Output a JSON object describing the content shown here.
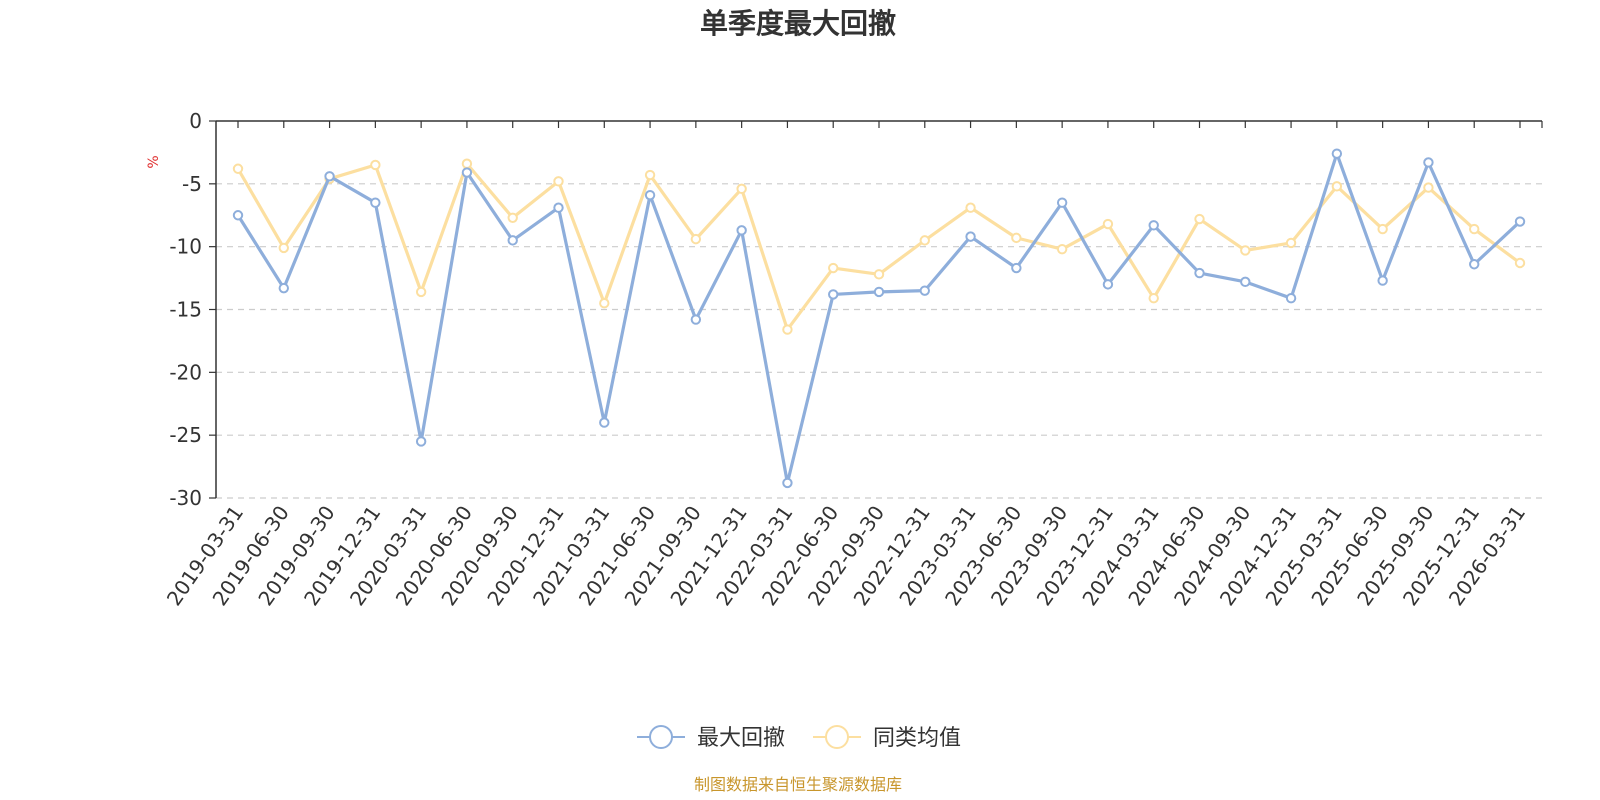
{
  "chart_data": {
    "type": "line",
    "title": "单季度最大回撤",
    "ylabel": "%",
    "ylim": [
      -30,
      0
    ],
    "yticks": [
      0,
      -5,
      -10,
      -15,
      -20,
      -25,
      -30
    ],
    "grid": true,
    "legend_position": "bottom",
    "categories": [
      "2019-03-31",
      "2019-06-30",
      "2019-09-30",
      "2019-12-31",
      "2020-03-31",
      "2020-06-30",
      "2020-09-30",
      "2020-12-31",
      "2021-03-31",
      "2021-06-30",
      "2021-09-30",
      "2021-12-31",
      "2022-03-31",
      "2022-06-30",
      "2022-09-30",
      "2022-12-31",
      "2023-03-31",
      "2023-06-30",
      "2023-09-30",
      "2023-12-31",
      "2024-03-31",
      "2024-06-30",
      "2024-09-30",
      "2024-12-31",
      "2025-03-31",
      "2025-06-30",
      "2025-09-30",
      "2025-12-31",
      "2026-03-31"
    ],
    "series": [
      {
        "name": "最大回撤",
        "color": "#8eaedb",
        "values": [
          -7.5,
          -13.3,
          -4.4,
          -6.5,
          -25.5,
          -4.1,
          -9.5,
          -6.9,
          -24.0,
          -5.9,
          -15.8,
          -8.7,
          -28.8,
          -13.8,
          -13.6,
          -13.5,
          -9.2,
          -11.7,
          -6.5,
          -13.0,
          -8.3,
          -12.1,
          -12.8,
          -14.1,
          -2.6,
          -12.7,
          -3.3,
          -11.4,
          -8.0
        ]
      },
      {
        "name": "同类均值",
        "color": "#fcdfa0",
        "values": [
          -3.8,
          -10.1,
          -4.6,
          -3.5,
          -13.6,
          -3.4,
          -7.7,
          -4.8,
          -14.5,
          -4.3,
          -9.4,
          -5.4,
          -16.6,
          -11.7,
          -12.2,
          -9.5,
          -6.9,
          -9.3,
          -10.2,
          -8.2,
          -14.1,
          -7.8,
          -10.3,
          -9.7,
          -5.2,
          -8.6,
          -5.3,
          -8.6,
          -11.3
        ]
      }
    ]
  },
  "footer": {
    "source_text": "制图数据来自恒生聚源数据库"
  }
}
